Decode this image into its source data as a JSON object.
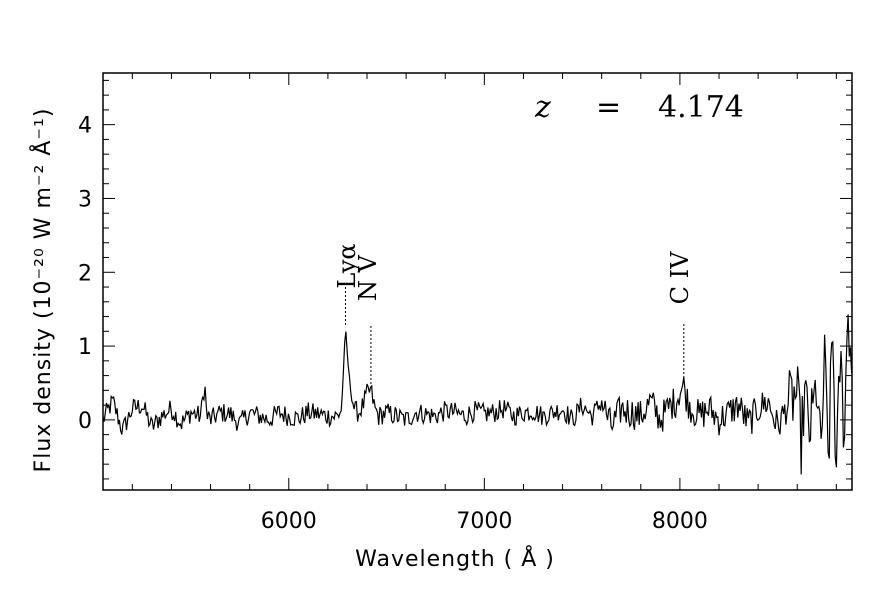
{
  "chart_data": {
    "type": "line",
    "xlabel": "Wavelength ( Å )",
    "ylabel": "Flux density (10⁻²⁰ W m⁻² Å⁻¹)",
    "xlim": [
      5050,
      8880
    ],
    "ylim": [
      -0.95,
      4.7
    ],
    "x_ticks": [
      6000,
      7000,
      8000
    ],
    "y_ticks": [
      0,
      1,
      2,
      3,
      4
    ],
    "grid": false,
    "redshift_label": {
      "symbol": "z",
      "equals": "=",
      "value": "4.174"
    },
    "emission_lines": [
      {
        "name": "Lyα",
        "wavelength": 6290
      },
      {
        "name": "N V",
        "wavelength": 6420
      },
      {
        "name": "C IV",
        "wavelength": 8020
      }
    ],
    "series": [
      {
        "x": [
          5050,
          5100,
          5150,
          5200,
          5250,
          5300,
          5350,
          5400,
          5450,
          5500,
          5550,
          5570,
          5580,
          5600,
          5650,
          5700,
          5750,
          5800,
          5850,
          5900,
          5950,
          6000,
          6050,
          6100,
          6150,
          6200,
          6250,
          6270,
          6290,
          6300,
          6320,
          6340,
          6360,
          6380,
          6400,
          6420,
          6440,
          6460,
          6500,
          6550,
          6600,
          6650,
          6700,
          6750,
          6800,
          6850,
          6900,
          6950,
          7000,
          7050,
          7100,
          7150,
          7200,
          7250,
          7300,
          7350,
          7400,
          7450,
          7500,
          7550,
          7600,
          7650,
          7700,
          7750,
          7800,
          7850,
          7900,
          7950,
          7980,
          8000,
          8020,
          8040,
          8060,
          8080,
          8100,
          8150,
          8200,
          8250,
          8300,
          8350,
          8400,
          8450,
          8500,
          8550,
          8600,
          8620,
          8640,
          8660,
          8680,
          8700,
          8720,
          8740,
          8760,
          8780,
          8800,
          8820,
          8840,
          8860,
          8880
        ],
        "y": [
          0.0,
          0.25,
          -0.15,
          0.15,
          0.2,
          -0.1,
          0.05,
          0.15,
          -0.05,
          0.1,
          0.05,
          0.5,
          0.05,
          0.0,
          0.1,
          0.08,
          -0.05,
          0.1,
          0.05,
          0.0,
          0.1,
          0.05,
          0.02,
          0.1,
          0.08,
          0.05,
          0.05,
          0.15,
          1.25,
          0.85,
          0.3,
          0.12,
          0.1,
          0.2,
          0.35,
          0.4,
          0.15,
          0.05,
          0.1,
          0.05,
          0.0,
          0.1,
          0.08,
          0.05,
          0.12,
          0.1,
          0.05,
          0.12,
          0.08,
          0.1,
          0.15,
          0.05,
          0.1,
          0.12,
          0.05,
          0.1,
          0.15,
          0.0,
          0.2,
          0.05,
          0.25,
          -0.1,
          0.15,
          0.1,
          0.05,
          0.25,
          0.0,
          0.2,
          0.25,
          0.4,
          0.45,
          0.25,
          0.15,
          0.1,
          0.05,
          0.15,
          0.0,
          0.1,
          0.2,
          -0.05,
          0.15,
          0.25,
          -0.1,
          0.2,
          0.35,
          -0.3,
          0.4,
          -0.2,
          0.1,
          0.5,
          -0.5,
          0.8,
          -0.6,
          1.3,
          -0.8,
          0.9,
          -0.2,
          1.5,
          0.6
        ]
      }
    ]
  }
}
